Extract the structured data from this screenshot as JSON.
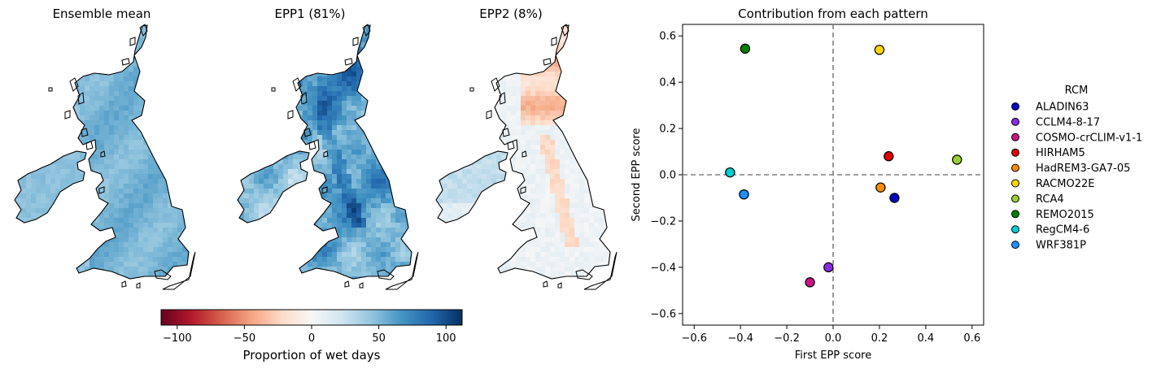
{
  "maps": [
    {
      "title": "Ensemble mean",
      "variant": "mean"
    },
    {
      "title": "EPP1 (81%)",
      "variant": "epp1"
    },
    {
      "title": "EPP2 (8%)",
      "variant": "epp2"
    }
  ],
  "colorbar": {
    "label": "Proportion of wet days",
    "min": -112,
    "max": 112,
    "ticks": [
      -100,
      -50,
      0,
      50,
      100
    ],
    "tick_labels": [
      "−100",
      "−50",
      "0",
      "50",
      "100"
    ],
    "colormap": "RdBu"
  },
  "chart_data": {
    "type": "scatter",
    "title": "Contribution from each pattern",
    "xlabel": "First EPP score",
    "ylabel": "Second EPP score",
    "xlim": [
      -0.65,
      0.65
    ],
    "ylim": [
      -0.65,
      0.65
    ],
    "xticks": [
      -0.6,
      -0.4,
      -0.2,
      0.0,
      0.2,
      0.4,
      0.6
    ],
    "xtick_labels": [
      "−0.6",
      "−0.4",
      "−0.2",
      "0.0",
      "0.2",
      "0.4",
      "0.6"
    ],
    "yticks": [
      -0.6,
      -0.4,
      -0.2,
      0.0,
      0.2,
      0.4,
      0.6
    ],
    "ytick_labels": [
      "−0.6",
      "−0.4",
      "−0.2",
      "0.0",
      "0.2",
      "0.4",
      "0.6"
    ],
    "reference_lines": {
      "x": 0,
      "y": 0,
      "style": "dashed"
    },
    "grid": false,
    "legend_title": "RCM",
    "legend_placement": "outside-right",
    "series": [
      {
        "name": "ALADIN63",
        "color": "#0000c8",
        "x": 0.265,
        "y": -0.1
      },
      {
        "name": "CCLM4-8-17",
        "color": "#8a2be2",
        "x": -0.02,
        "y": -0.4
      },
      {
        "name": "COSMO-crCLIM-v1-1",
        "color": "#c71585",
        "x": -0.1,
        "y": -0.465
      },
      {
        "name": "HIRHAM5",
        "color": "#e00000",
        "x": 0.24,
        "y": 0.08
      },
      {
        "name": "HadREM3-GA7-05",
        "color": "#ff8c00",
        "x": 0.205,
        "y": -0.055
      },
      {
        "name": "RACMO22E",
        "color": "#ffd700",
        "x": 0.2,
        "y": 0.54
      },
      {
        "name": "RCA4",
        "color": "#9acd32",
        "x": 0.535,
        "y": 0.065
      },
      {
        "name": "REMO2015",
        "color": "#008000",
        "x": -0.38,
        "y": 0.545
      },
      {
        "name": "RegCM4-6",
        "color": "#00ced1",
        "x": -0.445,
        "y": 0.01
      },
      {
        "name": "WRF381P",
        "color": "#1e90ff",
        "x": -0.385,
        "y": -0.085
      }
    ]
  }
}
